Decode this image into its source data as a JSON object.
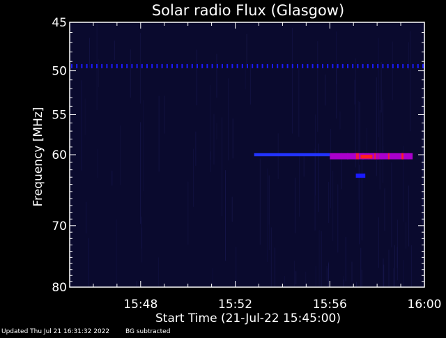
{
  "title": "Solar radio Flux (Glasgow)",
  "ylabel": "Frequency [MHz]",
  "xlabel": "Start Time (21-Jul-22 15:45:00)",
  "footer": {
    "updated": "Updated Thu Jul 21 16:31:32 2022",
    "note": "BG subtracted"
  },
  "colors": {
    "background": "#000000",
    "plot_background": "#0a0a2e",
    "axis": "#ffffff",
    "interference": "#1a1aff",
    "burst_low": "#2233ff",
    "burst_mid": "#aa00cc",
    "burst_high": "#ff2020"
  },
  "chart_data": {
    "type": "heatmap",
    "title": "Solar radio Flux (Glasgow)",
    "xlabel": "Start Time (21-Jul-22 15:45:00)",
    "ylabel": "Frequency [MHz]",
    "x_unit": "minutes after 15:45:00",
    "xlim": [
      0,
      15
    ],
    "ylim": [
      45,
      80
    ],
    "y_scale": "log",
    "y_inverted": true,
    "x_ticks": [
      {
        "value": 3,
        "label": "15:48"
      },
      {
        "value": 7,
        "label": "15:52"
      },
      {
        "value": 11,
        "label": "15:56"
      },
      {
        "value": 15,
        "label": "16:00"
      }
    ],
    "y_ticks": [
      {
        "value": 45,
        "label": "45"
      },
      {
        "value": 50,
        "label": "50"
      },
      {
        "value": 55,
        "label": "55"
      },
      {
        "value": 60,
        "label": "60"
      },
      {
        "value": 70,
        "label": "70"
      },
      {
        "value": 80,
        "label": "80"
      }
    ],
    "features": [
      {
        "name": "interference-line",
        "freq": 49.5,
        "t_start": 0,
        "t_end": 15,
        "intensity": "medium"
      },
      {
        "name": "burst-band-weak",
        "freq_start": 59.8,
        "freq_end": 60.2,
        "t_start": 7.8,
        "t_end": 11,
        "intensity": "low"
      },
      {
        "name": "burst-band-strong",
        "freq_start": 59.8,
        "freq_end": 60.6,
        "t_start": 11,
        "t_end": 14.5,
        "intensity": "high"
      },
      {
        "name": "burst-core",
        "freq_start": 60.0,
        "freq_end": 60.5,
        "t_start": 12.3,
        "t_end": 12.8,
        "intensity": "peak"
      },
      {
        "name": "blip",
        "freq": 62.8,
        "t_start": 12.1,
        "t_end": 12.5,
        "intensity": "medium"
      }
    ]
  }
}
